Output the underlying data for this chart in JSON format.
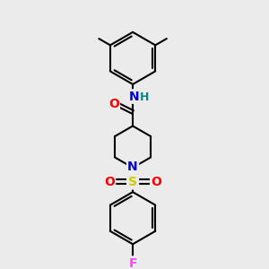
{
  "bg_color": "#ebebeb",
  "bond_color": "#000000",
  "bond_width": 1.5,
  "atom_colors": {
    "O": "#ff0000",
    "N_amide": "#0000cc",
    "N_pip": "#0000cc",
    "H": "#008888",
    "S": "#cccc00",
    "F": "#ff44ff",
    "C": "#000000"
  },
  "font_size_atom": 10
}
